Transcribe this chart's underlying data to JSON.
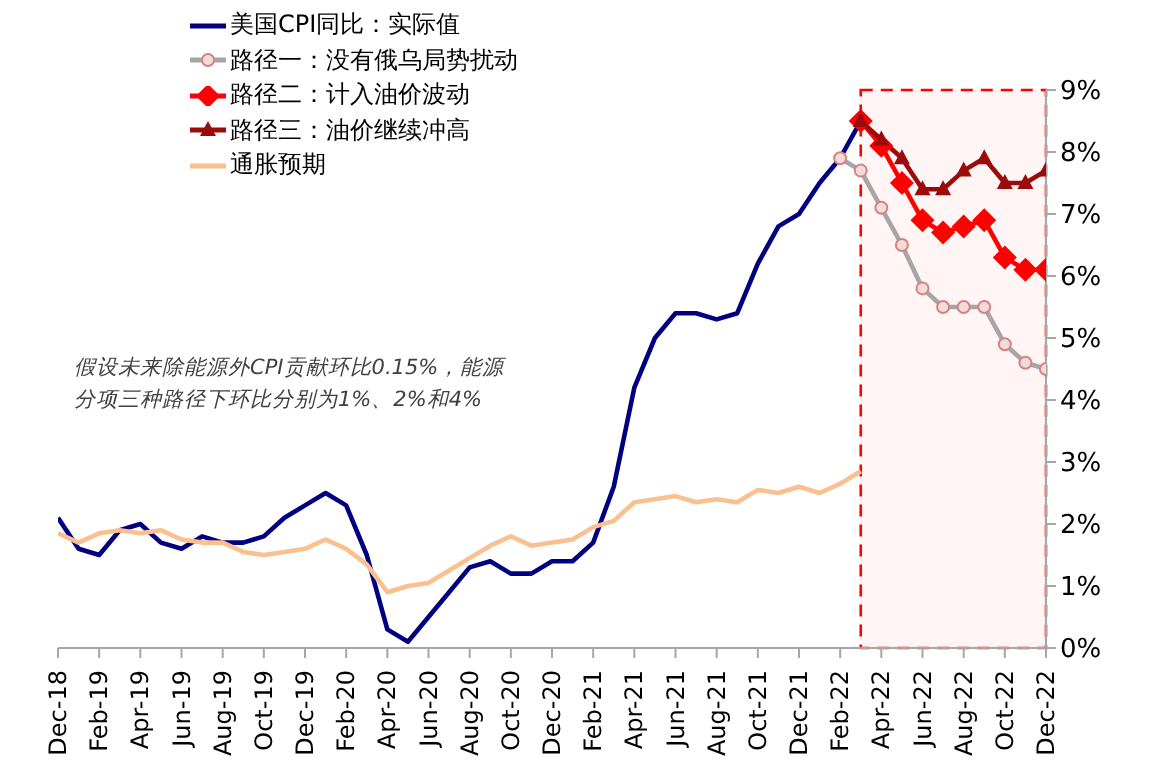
{
  "chart_data": {
    "type": "line",
    "annotations": [
      "假设未来除能源外CPI贡献环比0.15%，能源",
      "分项三种路径下环比分别为1%、2%和4%"
    ],
    "x": [
      "2018-12",
      "2019-01",
      "2019-02",
      "2019-03",
      "2019-04",
      "2019-05",
      "2019-06",
      "2019-07",
      "2019-08",
      "2019-09",
      "2019-10",
      "2019-11",
      "2019-12",
      "2020-01",
      "2020-02",
      "2020-03",
      "2020-04",
      "2020-05",
      "2020-06",
      "2020-07",
      "2020-08",
      "2020-09",
      "2020-10",
      "2020-11",
      "2020-12",
      "2021-01",
      "2021-02",
      "2021-03",
      "2021-04",
      "2021-05",
      "2021-06",
      "2021-07",
      "2021-08",
      "2021-09",
      "2021-10",
      "2021-11",
      "2021-12",
      "2022-01",
      "2022-02",
      "2022-03",
      "2022-04",
      "2022-05",
      "2022-06",
      "2022-07",
      "2022-08",
      "2022-09",
      "2022-10",
      "2022-11",
      "2022-12"
    ],
    "series": [
      {
        "name": "美国CPI同比：实际值",
        "color": "#000080",
        "marker": "none",
        "values": [
          2.1,
          1.6,
          1.5,
          1.9,
          2.0,
          1.7,
          1.6,
          1.8,
          1.7,
          1.7,
          1.8,
          2.1,
          2.3,
          2.5,
          2.3,
          1.5,
          0.3,
          0.1,
          0.5,
          0.9,
          1.3,
          1.4,
          1.2,
          1.2,
          1.4,
          1.4,
          1.7,
          2.6,
          4.2,
          5.0,
          5.4,
          5.4,
          5.3,
          5.4,
          6.2,
          6.8,
          7.0,
          7.5,
          7.9,
          8.5,
          null,
          null,
          null,
          null,
          null,
          null,
          null,
          null,
          null
        ]
      },
      {
        "name": "路径一：没有俄乌局势扰动",
        "color": "#a6a6a6",
        "marker": "circle",
        "values": [
          null,
          null,
          null,
          null,
          null,
          null,
          null,
          null,
          null,
          null,
          null,
          null,
          null,
          null,
          null,
          null,
          null,
          null,
          null,
          null,
          null,
          null,
          null,
          null,
          null,
          null,
          null,
          null,
          null,
          null,
          null,
          null,
          null,
          null,
          null,
          null,
          null,
          null,
          7.9,
          7.7,
          7.1,
          6.5,
          5.8,
          5.5,
          5.5,
          5.5,
          4.9,
          4.6,
          4.5
        ]
      },
      {
        "name": "路径二：计入油价波动",
        "color": "#ff0000",
        "marker": "diamond",
        "values": [
          null,
          null,
          null,
          null,
          null,
          null,
          null,
          null,
          null,
          null,
          null,
          null,
          null,
          null,
          null,
          null,
          null,
          null,
          null,
          null,
          null,
          null,
          null,
          null,
          null,
          null,
          null,
          null,
          null,
          null,
          null,
          null,
          null,
          null,
          null,
          null,
          null,
          null,
          null,
          8.5,
          8.1,
          7.5,
          6.9,
          6.7,
          6.8,
          6.9,
          6.3,
          6.1,
          6.1
        ]
      },
      {
        "name": "路径三：油价继续冲高",
        "color": "#9b0b0b",
        "marker": "triangle",
        "values": [
          null,
          null,
          null,
          null,
          null,
          null,
          null,
          null,
          null,
          null,
          null,
          null,
          null,
          null,
          null,
          null,
          null,
          null,
          null,
          null,
          null,
          null,
          null,
          null,
          null,
          null,
          null,
          null,
          null,
          null,
          null,
          null,
          null,
          null,
          null,
          null,
          null,
          null,
          null,
          8.5,
          8.2,
          7.9,
          7.4,
          7.4,
          7.7,
          7.9,
          7.5,
          7.5,
          7.7
        ]
      },
      {
        "name": "通胀预期",
        "color": "#fac090",
        "marker": "none",
        "values": [
          1.85,
          1.7,
          1.85,
          1.9,
          1.85,
          1.9,
          1.75,
          1.7,
          1.7,
          1.55,
          1.5,
          1.55,
          1.6,
          1.75,
          1.6,
          1.35,
          0.9,
          1.0,
          1.05,
          1.25,
          1.45,
          1.65,
          1.8,
          1.65,
          1.7,
          1.75,
          1.95,
          2.05,
          2.35,
          2.4,
          2.45,
          2.35,
          2.4,
          2.35,
          2.55,
          2.5,
          2.6,
          2.5,
          2.65,
          2.85,
          null,
          null,
          null,
          null,
          null,
          null,
          null,
          null,
          null
        ]
      }
    ],
    "xlim": [
      "2018-12",
      "2022-12"
    ],
    "xticks": [
      {
        "value": "2018-12",
        "label": "Dec-18"
      },
      {
        "value": "2019-02",
        "label": "Feb-19"
      },
      {
        "value": "2019-04",
        "label": "Apr-19"
      },
      {
        "value": "2019-06",
        "label": "Jun-19"
      },
      {
        "value": "2019-08",
        "label": "Aug-19"
      },
      {
        "value": "2019-10",
        "label": "Oct-19"
      },
      {
        "value": "2019-12",
        "label": "Dec-19"
      },
      {
        "value": "2020-02",
        "label": "Feb-20"
      },
      {
        "value": "2020-04",
        "label": "Apr-20"
      },
      {
        "value": "2020-06",
        "label": "Jun-20"
      },
      {
        "value": "2020-08",
        "label": "Aug-20"
      },
      {
        "value": "2020-10",
        "label": "Oct-20"
      },
      {
        "value": "2020-12",
        "label": "Dec-20"
      },
      {
        "value": "2021-02",
        "label": "Feb-21"
      },
      {
        "value": "2021-04",
        "label": "Apr-21"
      },
      {
        "value": "2021-06",
        "label": "Jun-21"
      },
      {
        "value": "2021-08",
        "label": "Aug-21"
      },
      {
        "value": "2021-10",
        "label": "Oct-21"
      },
      {
        "value": "2021-12",
        "label": "Dec-21"
      },
      {
        "value": "2022-02",
        "label": "Feb-22"
      },
      {
        "value": "2022-04",
        "label": "Apr-22"
      },
      {
        "value": "2022-06",
        "label": "Jun-22"
      },
      {
        "value": "2022-08",
        "label": "Aug-22"
      },
      {
        "value": "2022-10",
        "label": "Oct-22"
      },
      {
        "value": "2022-12",
        "label": "Dec-22"
      }
    ],
    "bands": [
      {
        "axis": "x",
        "from": "2022-03",
        "to": "2022-12",
        "color": "#ff0000"
      }
    ],
    "ylim": [
      0,
      9
    ],
    "yticks": [
      {
        "value": 0,
        "label": "0%"
      },
      {
        "value": 1,
        "label": "1%"
      },
      {
        "value": 2,
        "label": "2%"
      },
      {
        "value": 3,
        "label": "3%"
      },
      {
        "value": 4,
        "label": "4%"
      },
      {
        "value": 5,
        "label": "5%"
      },
      {
        "value": 6,
        "label": "6%"
      },
      {
        "value": 7,
        "label": "7%"
      },
      {
        "value": 8,
        "label": "8%"
      },
      {
        "value": 9,
        "label": "9%"
      }
    ],
    "grid": false,
    "legend": "top left",
    "line_style": "solid"
  }
}
